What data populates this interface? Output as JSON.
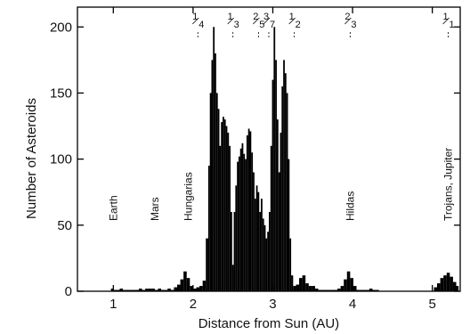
{
  "chart_data": {
    "type": "bar",
    "xlabel": "Distance from Sun (AU)",
    "ylabel": "Number of Asteroids",
    "xlim": [
      0.55,
      5.35
    ],
    "ylim": [
      0,
      215
    ],
    "x_ticks": [
      1,
      2,
      3,
      4,
      5
    ],
    "y_ticks": [
      0,
      50,
      100,
      150,
      200
    ],
    "grid": false,
    "bar_color": "#000000",
    "bins": [
      {
        "x": 0.98,
        "y": 2
      },
      {
        "x": 1.02,
        "y": 1
      },
      {
        "x": 1.06,
        "y": 1
      },
      {
        "x": 1.1,
        "y": 2
      },
      {
        "x": 1.14,
        "y": 1
      },
      {
        "x": 1.18,
        "y": 1
      },
      {
        "x": 1.22,
        "y": 1
      },
      {
        "x": 1.26,
        "y": 1
      },
      {
        "x": 1.3,
        "y": 1
      },
      {
        "x": 1.34,
        "y": 2
      },
      {
        "x": 1.38,
        "y": 1
      },
      {
        "x": 1.42,
        "y": 2
      },
      {
        "x": 1.46,
        "y": 2
      },
      {
        "x": 1.5,
        "y": 2
      },
      {
        "x": 1.54,
        "y": 1
      },
      {
        "x": 1.58,
        "y": 2
      },
      {
        "x": 1.62,
        "y": 1
      },
      {
        "x": 1.66,
        "y": 1
      },
      {
        "x": 1.7,
        "y": 2
      },
      {
        "x": 1.74,
        "y": 1
      },
      {
        "x": 1.78,
        "y": 3
      },
      {
        "x": 1.82,
        "y": 5
      },
      {
        "x": 1.86,
        "y": 9
      },
      {
        "x": 1.9,
        "y": 15
      },
      {
        "x": 1.94,
        "y": 10
      },
      {
        "x": 1.98,
        "y": 4
      },
      {
        "x": 2.02,
        "y": 2
      },
      {
        "x": 2.06,
        "y": 3
      },
      {
        "x": 2.1,
        "y": 4
      },
      {
        "x": 2.14,
        "y": 8
      },
      {
        "x": 2.18,
        "y": 40
      },
      {
        "x": 2.2,
        "y": 95
      },
      {
        "x": 2.22,
        "y": 150
      },
      {
        "x": 2.24,
        "y": 175
      },
      {
        "x": 2.26,
        "y": 200
      },
      {
        "x": 2.28,
        "y": 180
      },
      {
        "x": 2.3,
        "y": 150
      },
      {
        "x": 2.32,
        "y": 138
      },
      {
        "x": 2.34,
        "y": 110
      },
      {
        "x": 2.36,
        "y": 128
      },
      {
        "x": 2.38,
        "y": 132
      },
      {
        "x": 2.4,
        "y": 130
      },
      {
        "x": 2.42,
        "y": 125
      },
      {
        "x": 2.44,
        "y": 120
      },
      {
        "x": 2.46,
        "y": 110
      },
      {
        "x": 2.48,
        "y": 60
      },
      {
        "x": 2.5,
        "y": 20
      },
      {
        "x": 2.52,
        "y": 60
      },
      {
        "x": 2.54,
        "y": 80
      },
      {
        "x": 2.56,
        "y": 98
      },
      {
        "x": 2.58,
        "y": 102
      },
      {
        "x": 2.6,
        "y": 108
      },
      {
        "x": 2.62,
        "y": 112
      },
      {
        "x": 2.64,
        "y": 104
      },
      {
        "x": 2.66,
        "y": 100
      },
      {
        "x": 2.68,
        "y": 118
      },
      {
        "x": 2.7,
        "y": 123
      },
      {
        "x": 2.72,
        "y": 121
      },
      {
        "x": 2.74,
        "y": 105
      },
      {
        "x": 2.76,
        "y": 90
      },
      {
        "x": 2.78,
        "y": 70
      },
      {
        "x": 2.8,
        "y": 80
      },
      {
        "x": 2.82,
        "y": 75
      },
      {
        "x": 2.84,
        "y": 60
      },
      {
        "x": 2.86,
        "y": 70
      },
      {
        "x": 2.88,
        "y": 55
      },
      {
        "x": 2.9,
        "y": 50
      },
      {
        "x": 2.92,
        "y": 40
      },
      {
        "x": 2.94,
        "y": 45
      },
      {
        "x": 2.96,
        "y": 60
      },
      {
        "x": 2.98,
        "y": 110
      },
      {
        "x": 3.0,
        "y": 160
      },
      {
        "x": 3.02,
        "y": 200
      },
      {
        "x": 3.04,
        "y": 175
      },
      {
        "x": 3.06,
        "y": 130
      },
      {
        "x": 3.08,
        "y": 90
      },
      {
        "x": 3.1,
        "y": 120
      },
      {
        "x": 3.12,
        "y": 155
      },
      {
        "x": 3.14,
        "y": 175
      },
      {
        "x": 3.16,
        "y": 165
      },
      {
        "x": 3.18,
        "y": 150
      },
      {
        "x": 3.2,
        "y": 100
      },
      {
        "x": 3.22,
        "y": 40
      },
      {
        "x": 3.24,
        "y": 12
      },
      {
        "x": 3.27,
        "y": 4
      },
      {
        "x": 3.31,
        "y": 5
      },
      {
        "x": 3.35,
        "y": 10
      },
      {
        "x": 3.39,
        "y": 12
      },
      {
        "x": 3.43,
        "y": 6
      },
      {
        "x": 3.47,
        "y": 4
      },
      {
        "x": 3.51,
        "y": 4
      },
      {
        "x": 3.55,
        "y": 2
      },
      {
        "x": 3.59,
        "y": 1
      },
      {
        "x": 3.63,
        "y": 1
      },
      {
        "x": 3.67,
        "y": 1
      },
      {
        "x": 3.71,
        "y": 1
      },
      {
        "x": 3.75,
        "y": 1
      },
      {
        "x": 3.79,
        "y": 1
      },
      {
        "x": 3.83,
        "y": 2
      },
      {
        "x": 3.87,
        "y": 4
      },
      {
        "x": 3.91,
        "y": 9
      },
      {
        "x": 3.95,
        "y": 15
      },
      {
        "x": 3.99,
        "y": 10
      },
      {
        "x": 4.03,
        "y": 4
      },
      {
        "x": 4.07,
        "y": 1
      },
      {
        "x": 4.11,
        "y": 1
      },
      {
        "x": 4.15,
        "y": 1
      },
      {
        "x": 4.19,
        "y": 1
      },
      {
        "x": 4.23,
        "y": 2
      },
      {
        "x": 4.27,
        "y": 1
      },
      {
        "x": 4.31,
        "y": 1
      },
      {
        "x": 5.04,
        "y": 3
      },
      {
        "x": 5.08,
        "y": 6
      },
      {
        "x": 5.12,
        "y": 10
      },
      {
        "x": 5.16,
        "y": 12
      },
      {
        "x": 5.2,
        "y": 14
      },
      {
        "x": 5.24,
        "y": 11
      },
      {
        "x": 5.28,
        "y": 7
      },
      {
        "x": 5.32,
        "y": 4
      }
    ],
    "resonances": [
      {
        "num": "1",
        "den": "4",
        "x": 2.06
      },
      {
        "num": "1",
        "den": "3",
        "x": 2.5
      },
      {
        "num": "2",
        "den": "5",
        "x": 2.82
      },
      {
        "num": "3",
        "den": "7",
        "x": 2.95
      },
      {
        "num": "1",
        "den": "2",
        "x": 3.27
      },
      {
        "num": "2",
        "den": "3",
        "x": 3.97
      },
      {
        "num": "1",
        "den": "1",
        "x": 5.2
      }
    ],
    "annotations": [
      {
        "text": "Earth",
        "x": 1.0
      },
      {
        "text": "Mars",
        "x": 1.52
      },
      {
        "text": "Hungarias",
        "x": 1.94
      },
      {
        "text": "Hildas",
        "x": 3.97
      },
      {
        "text": "Trojans, Jupiter",
        "x": 5.2
      }
    ]
  }
}
